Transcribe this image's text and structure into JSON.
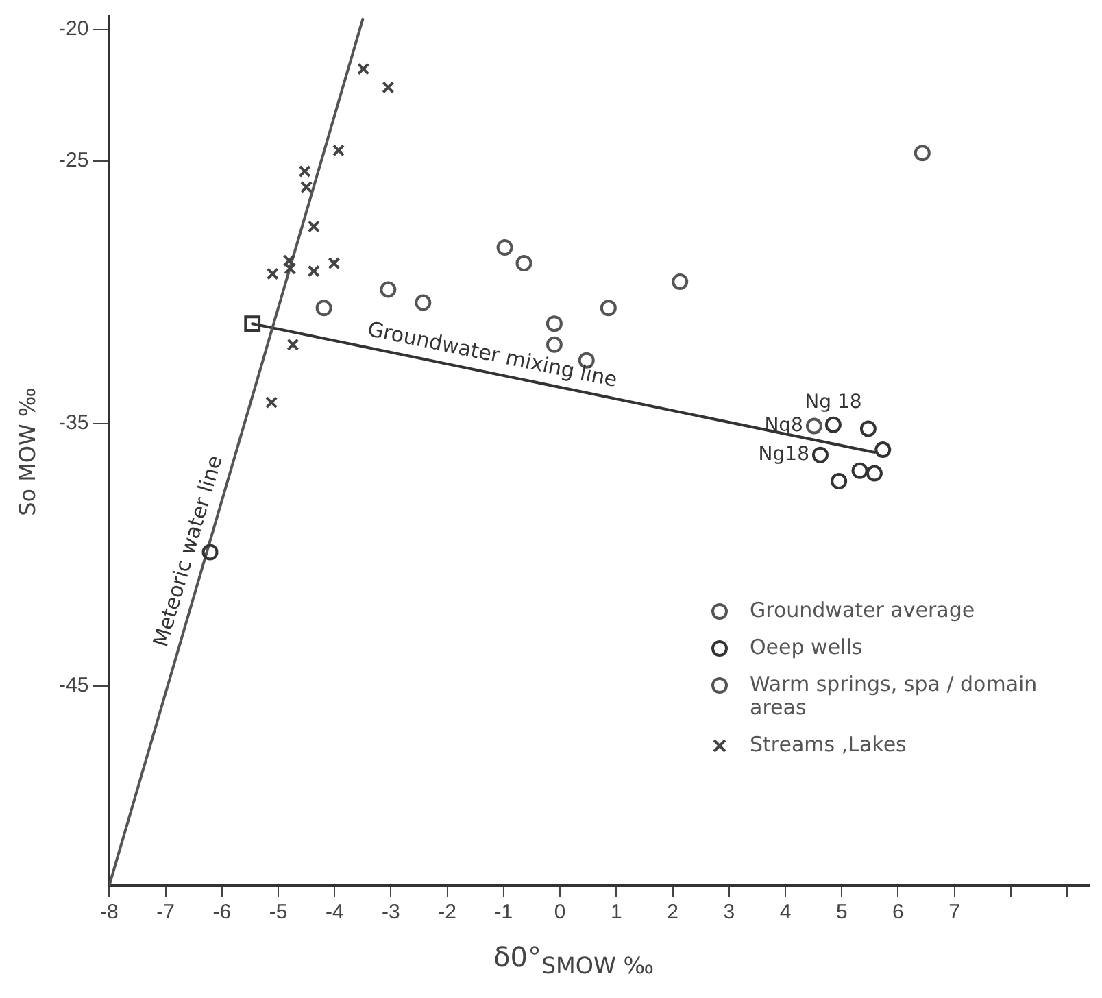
{
  "chart_data": {
    "type": "scatter",
    "xlabel": "δ0°$_{SMOW ‰}$",
    "ylabel": "So MOW ‰",
    "xlim": [
      -8,
      9.4
    ],
    "ylim": [
      -52.6,
      -19.5
    ],
    "xticks": [
      -8,
      -7,
      -6,
      -5,
      -4,
      -3,
      -2,
      -1,
      0,
      1,
      2,
      3,
      4,
      5,
      6,
      7,
      {
        "value": 8,
        "label": null
      },
      {
        "value": 9,
        "label": null
      }
    ],
    "yticks": [
      -20,
      -25,
      -35,
      -45
    ],
    "grid": false,
    "legend": "bottom right",
    "series": [
      {
        "name": "Groundwater average",
        "color": "#555555",
        "marker": "circle",
        "x": [
          6.43,
          2.13,
          0.86
        ],
        "values": [
          -24.7,
          -29.6,
          -30.6
        ]
      },
      {
        "name": "Oeep wells",
        "color": "#333333",
        "marker": "circle",
        "x": [
          4.85,
          5.47,
          4.62,
          4.95,
          5.58,
          5.73,
          5.32,
          -6.21
        ],
        "values": [
          -35.05,
          -35.2,
          -36.2,
          -37.2,
          -36.9,
          -36.0,
          -36.8,
          -39.9
        ]
      },
      {
        "name": "Warm springs, spa / domain areas",
        "color": "#555555",
        "marker": "circle",
        "x": [
          -4.19,
          -3.05,
          -2.43,
          -0.98,
          -0.64,
          -0.1,
          -0.1,
          0.47,
          4.51
        ],
        "values": [
          -30.6,
          -29.9,
          -30.4,
          -28.3,
          -28.9,
          -31.2,
          -32.0,
          -32.6,
          -35.1
        ]
      },
      {
        "name": "Streams ,Lakes",
        "color": "#444444",
        "marker": "cross",
        "x": [
          -3.49,
          -3.05,
          -3.93,
          -4.53,
          -4.5,
          -4.37,
          -4.81,
          -5.1,
          -4.79,
          -4.37,
          -4.01,
          -4.74,
          -5.12
        ],
        "values": [
          -21.5,
          -22.2,
          -24.6,
          -25.4,
          -26.0,
          -27.5,
          -28.8,
          -29.3,
          -29.1,
          -29.2,
          -28.9,
          -32.0,
          -34.2
        ]
      },
      {
        "color": "#333333",
        "marker": "square",
        "x": [
          -5.46
        ],
        "values": [
          -31.2
        ]
      },
      {
        "type": "line",
        "name": "Meteoric water line",
        "color": "#555555",
        "marker": "none",
        "x": [
          -8,
          -3.5
        ],
        "values": [
          -52.6,
          -19.6
        ]
      },
      {
        "type": "line",
        "name": "Groundwater mixing line",
        "color": "#333333",
        "marker": "none",
        "x": [
          -5.46,
          5.58
        ],
        "values": [
          -31.2,
          -36.1
        ]
      }
    ],
    "annotations": [
      {
        "text": "Ng8",
        "x": 4.51,
        "y": -35.1
      },
      {
        "text": "Ng 18",
        "x": 4.85,
        "y": -35.05
      },
      {
        "text": "Ng18",
        "x": 4.62,
        "y": -36.2
      }
    ]
  }
}
